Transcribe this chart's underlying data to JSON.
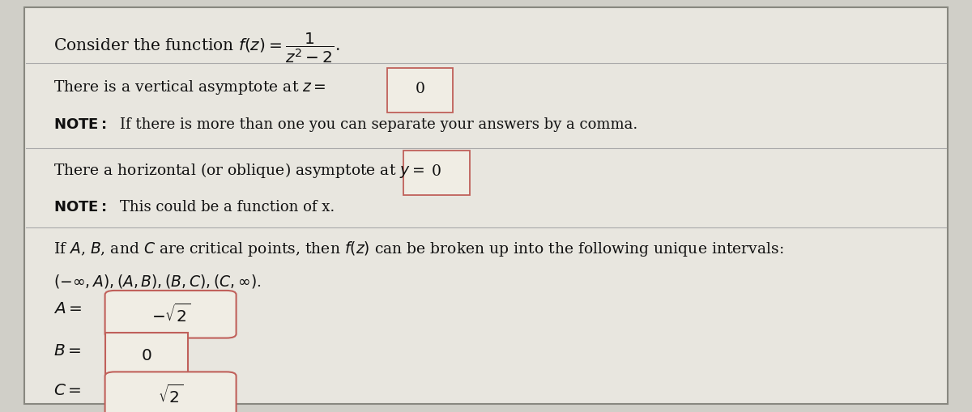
{
  "bg_color": "#d0cfc8",
  "panel_color": "#e8e6df",
  "panel_border": "#888880",
  "box_bg": "#f0ede4",
  "box_border": "#c0605a",
  "title_line": "Consider the function $f(z) = \\dfrac{1}{z^2-2}$.",
  "line2a": "There is a vertical asymptote at $z =$ ",
  "line2b": "0",
  "line3a": "NOTE: ",
  "line3b": "If there is more than one you can separate your answers by a comma.",
  "line4a": "There a horizontal (or oblique) asymptote at $y =$ ",
  "line4b": "0",
  "line5a": "NOTE: ",
  "line5b": "This could be a function of x.",
  "line6a": "If $A$, $B$, and $C$ are critical points, then $f(z)$ can be broken up into the following unique intervals:",
  "line6b": "$(-\\infty, A), (A, B), (B, C), (C, \\infty)$.",
  "A_label": "$A=$",
  "A_value": "$-\\sqrt{2}$",
  "B_label": "$B=$",
  "B_value": "$0$",
  "C_label": "$C=$",
  "C_value": "$\\sqrt{2}$",
  "text_color": "#111111",
  "sep_color": "#aaaaaa"
}
